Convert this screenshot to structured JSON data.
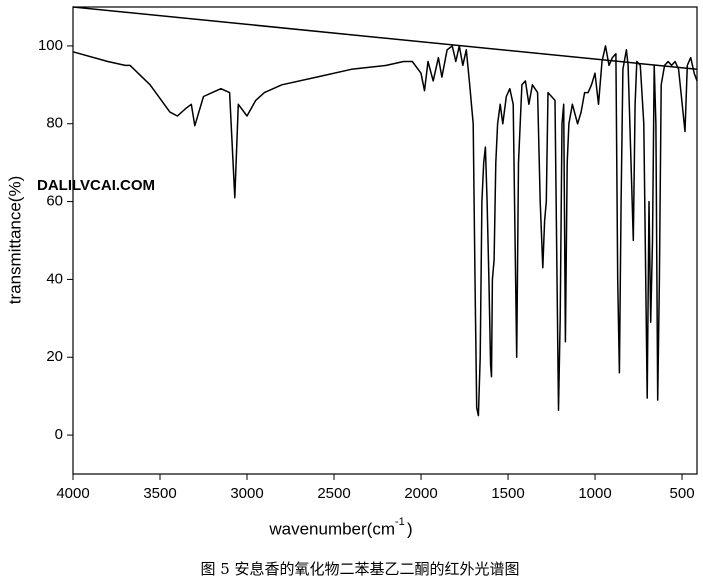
{
  "chart_data": {
    "type": "line",
    "x_label": "wavenumber(cm",
    "x_label_superscript": "-1",
    "x_label_end": ")",
    "y_label": "transmittance(%)",
    "caption": "图 5 安息香的氧化物二苯基乙二酮的红外光谱图",
    "watermark": [
      "DALILVCAI",
      ".COM"
    ],
    "watermark_colors": [
      "#1f5fbf",
      "#f07820"
    ],
    "xlim": [
      4000,
      414
    ],
    "ylim": [
      -10,
      110
    ],
    "xticks": [
      4000,
      3500,
      3000,
      2500,
      2000,
      1500,
      1000,
      500
    ],
    "yticks": [
      0,
      20,
      40,
      60,
      80,
      100
    ],
    "reference_line": {
      "x": [
        4000,
        414
      ],
      "y": [
        110,
        94
      ]
    },
    "series": [
      {
        "color": "#000000",
        "x": [
          4000,
          3800,
          3700,
          3672,
          3557,
          3443,
          3400,
          3350,
          3320,
          3300,
          3250,
          3200,
          3150,
          3100,
          3070,
          3050,
          3000,
          2950,
          2900,
          2800,
          2600,
          2400,
          2200,
          2100,
          2050,
          2000,
          1980,
          1960,
          1930,
          1900,
          1880,
          1850,
          1820,
          1800,
          1780,
          1760,
          1740,
          1720,
          1700,
          1690,
          1680,
          1670,
          1660,
          1650,
          1640,
          1630,
          1620,
          1610,
          1600,
          1595,
          1590,
          1580,
          1570,
          1560,
          1545,
          1530,
          1510,
          1490,
          1470,
          1450,
          1440,
          1420,
          1400,
          1380,
          1360,
          1330,
          1315,
          1300,
          1290,
          1280,
          1270,
          1250,
          1230,
          1210,
          1200,
          1190,
          1180,
          1170,
          1160,
          1150,
          1130,
          1100,
          1080,
          1060,
          1040,
          1020,
          1000,
          980,
          960,
          940,
          920,
          900,
          880,
          870,
          860,
          850,
          840,
          820,
          810,
          790,
          780,
          770,
          760,
          740,
          720,
          700,
          690,
          680,
          670,
          660,
          650,
          640,
          630,
          620,
          600,
          580,
          560,
          540,
          520,
          483,
          470,
          450,
          430,
          414
        ],
        "values": [
          98.5,
          96,
          95,
          95,
          90,
          83,
          82,
          84,
          85,
          79.5,
          87,
          88,
          89,
          88,
          61,
          85,
          82,
          86,
          88,
          90,
          92,
          94,
          95,
          96,
          96,
          93,
          88.5,
          96,
          91,
          97,
          92,
          99,
          100,
          96,
          100,
          95,
          99,
          90,
          80,
          40,
          7,
          5,
          20,
          60,
          70,
          74,
          60,
          40,
          18,
          15,
          40,
          45,
          70,
          80,
          85,
          80,
          87,
          89,
          85,
          20,
          70,
          90,
          91,
          85,
          90,
          88,
          60,
          43,
          55,
          60,
          88,
          87,
          86,
          6.4,
          30,
          80,
          85,
          24,
          70,
          80,
          85,
          80,
          83,
          88,
          88,
          90,
          93,
          85,
          96,
          100,
          95,
          97,
          98,
          40,
          16,
          60,
          94,
          99,
          95,
          65,
          50,
          85,
          96,
          95,
          80,
          9.5,
          60,
          29,
          50,
          95,
          80,
          9,
          40,
          90,
          95,
          96,
          95,
          96,
          94,
          78,
          95,
          97,
          93,
          91
        ]
      }
    ]
  }
}
